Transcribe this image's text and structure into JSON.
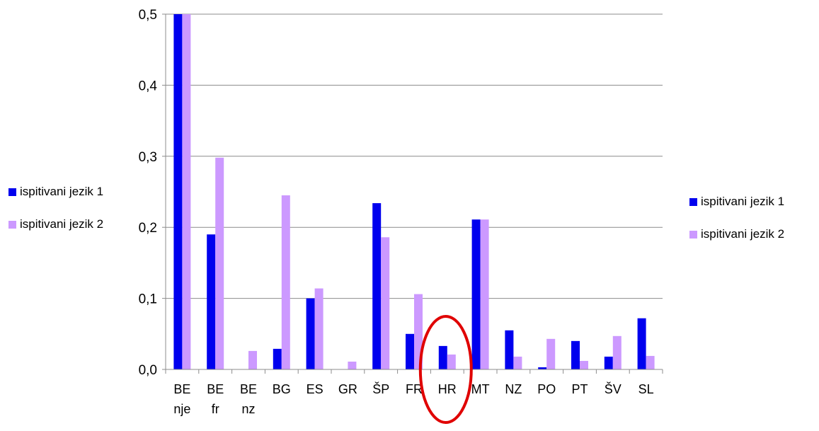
{
  "chart_data": {
    "type": "bar",
    "title": "",
    "xlabel": "",
    "ylabel": "",
    "ylim": [
      0,
      0.5
    ],
    "yticks": [
      "0,0",
      "0,1",
      "0,2",
      "0,3",
      "0,4",
      "0,5"
    ],
    "grid": true,
    "categories": [
      [
        "BE",
        "nje"
      ],
      [
        "BE",
        "fr"
      ],
      [
        "BE",
        "nz"
      ],
      [
        "BG"
      ],
      [
        "ES"
      ],
      [
        "GR"
      ],
      [
        "ŠP"
      ],
      [
        "FR"
      ],
      [
        "HR"
      ],
      [
        "MT"
      ],
      [
        "NZ"
      ],
      [
        "PO"
      ],
      [
        "PT"
      ],
      [
        "ŠV"
      ],
      [
        "SL"
      ]
    ],
    "series": [
      {
        "name": "ispitivani jezik 1",
        "color": "#0000ee",
        "values": [
          0.5,
          0.19,
          0.0,
          0.029,
          0.1,
          0.0,
          0.234,
          0.05,
          0.033,
          0.211,
          0.055,
          0.003,
          0.04,
          0.018,
          0.072
        ]
      },
      {
        "name": "ispitivani jezik 2",
        "color": "#cc99ff",
        "values": [
          0.5,
          0.298,
          0.026,
          0.245,
          0.114,
          0.011,
          0.186,
          0.106,
          0.021,
          0.211,
          0.018,
          0.043,
          0.012,
          0.047,
          0.019
        ]
      }
    ],
    "annotations": [
      {
        "type": "circle",
        "target_category": "HR",
        "color": "#e00000"
      }
    ],
    "legend_placement": [
      "left",
      "right"
    ]
  }
}
